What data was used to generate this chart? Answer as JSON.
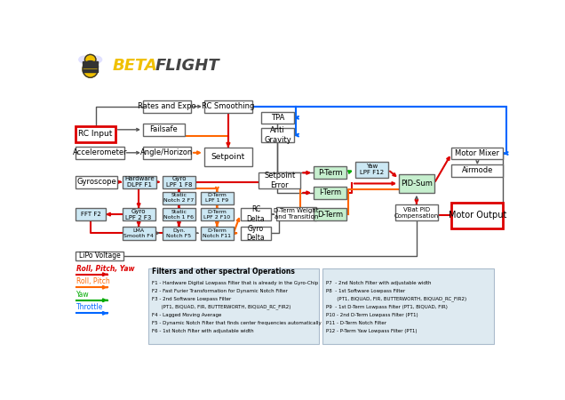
{
  "bg_color": "#ffffff",
  "boxes": {
    "rc_input": [
      0.012,
      0.695,
      0.09,
      0.052,
      "RC Input",
      "#ffffff",
      "#dd0000",
      2.0,
      6.5
    ],
    "rates_expo": [
      0.165,
      0.79,
      0.11,
      0.04,
      "Rates and Expo",
      "#ffffff",
      "#666666",
      1.0,
      6.0
    ],
    "rc_smoothing": [
      0.305,
      0.79,
      0.11,
      0.04,
      "RC Smoothing",
      "#ffffff",
      "#666666",
      1.0,
      6.0
    ],
    "failsafe": [
      0.165,
      0.715,
      0.095,
      0.04,
      "Failsafe",
      "#ffffff",
      "#666666",
      1.0,
      6.0
    ],
    "accelerometer": [
      0.012,
      0.64,
      0.11,
      0.04,
      "Accelerometer",
      "#ffffff",
      "#666666",
      1.0,
      6.0
    ],
    "angle_horizon": [
      0.165,
      0.64,
      0.11,
      0.04,
      "Angle/Horizon",
      "#ffffff",
      "#666666",
      1.0,
      6.0
    ],
    "setpoint": [
      0.305,
      0.617,
      0.11,
      0.06,
      "Setpoint",
      "#ffffff",
      "#666666",
      1.0,
      6.5
    ],
    "tpa": [
      0.435,
      0.755,
      0.075,
      0.038,
      "TPA",
      "#ffffff",
      "#666666",
      1.0,
      6.0
    ],
    "anti_gravity": [
      0.435,
      0.693,
      0.075,
      0.048,
      "Anti\nGravity",
      "#ffffff",
      "#666666",
      1.0,
      6.0
    ],
    "gyroscope": [
      0.012,
      0.545,
      0.095,
      0.04,
      "Gyroscope",
      "#ffffff",
      "#666666",
      1.0,
      6.0
    ],
    "hw_dlpf": [
      0.118,
      0.545,
      0.078,
      0.04,
      "Hardware\nDLPF F1",
      "#cce8f4",
      "#666666",
      1.0,
      5.0
    ],
    "gyro_lpf1": [
      0.21,
      0.545,
      0.075,
      0.04,
      "Gyro\nLPF 1 F8",
      "#cce8f4",
      "#666666",
      1.0,
      5.0
    ],
    "static_notch2": [
      0.21,
      0.493,
      0.075,
      0.04,
      "Static\nNotch 2 F7",
      "#cce8f4",
      "#666666",
      1.0,
      4.5
    ],
    "dterm_lpf1": [
      0.297,
      0.493,
      0.075,
      0.04,
      "D-Term\nLPF 1 F9",
      "#cce8f4",
      "#666666",
      1.0,
      4.5
    ],
    "fft": [
      0.012,
      0.44,
      0.068,
      0.04,
      "FFT F2",
      "#cce8f4",
      "#666666",
      1.0,
      5.0
    ],
    "gyro_lpf2": [
      0.118,
      0.44,
      0.075,
      0.04,
      "Gyro\nLPF 2 F3",
      "#cce8f4",
      "#666666",
      1.0,
      5.0
    ],
    "static_notch1": [
      0.21,
      0.44,
      0.075,
      0.04,
      "Static\nNotch 1 F6",
      "#cce8f4",
      "#666666",
      1.0,
      4.5
    ],
    "dterm_lpf2": [
      0.297,
      0.44,
      0.075,
      0.04,
      "D-Term\nLPF 2 F10",
      "#cce8f4",
      "#666666",
      1.0,
      4.5
    ],
    "lma_smooth": [
      0.118,
      0.378,
      0.075,
      0.042,
      "LMA\nSmooth F4",
      "#cce8f4",
      "#666666",
      1.0,
      4.5
    ],
    "dyn_notch": [
      0.21,
      0.378,
      0.075,
      0.042,
      "Dyn.\nNotch F5",
      "#cce8f4",
      "#666666",
      1.0,
      4.5
    ],
    "dterm_notch": [
      0.297,
      0.378,
      0.075,
      0.042,
      "D-Term\nNotch F11",
      "#cce8f4",
      "#666666",
      1.0,
      4.5
    ],
    "rc_delta": [
      0.388,
      0.44,
      0.07,
      0.04,
      "RC\nDelta",
      "#ffffff",
      "#666666",
      1.0,
      5.5
    ],
    "gyro_delta": [
      0.388,
      0.378,
      0.07,
      0.042,
      "Gyro\nDelta",
      "#ffffff",
      "#666666",
      1.0,
      5.5
    ],
    "dterm_weight": [
      0.47,
      0.44,
      0.09,
      0.042,
      "D-Term Weight\nand Transition",
      "#ffffff",
      "#666666",
      1.0,
      5.0
    ],
    "setpoint_error": [
      0.43,
      0.545,
      0.095,
      0.05,
      "Setpoint\nError",
      "#ffffff",
      "#666666",
      1.0,
      6.0
    ],
    "p_term": [
      0.555,
      0.575,
      0.075,
      0.04,
      "P-Term",
      "#c6efce",
      "#666666",
      1.0,
      6.0
    ],
    "i_term": [
      0.555,
      0.51,
      0.075,
      0.04,
      "I-Term",
      "#c6efce",
      "#666666",
      1.0,
      6.0
    ],
    "d_term": [
      0.555,
      0.44,
      0.075,
      0.04,
      "D-Term",
      "#c6efce",
      "#666666",
      1.0,
      6.0
    ],
    "yaw_lpf": [
      0.65,
      0.58,
      0.075,
      0.05,
      "Yaw\nLPF F12",
      "#cce8f4",
      "#666666",
      1.0,
      5.0
    ],
    "pid_sum": [
      0.75,
      0.53,
      0.08,
      0.06,
      "PID-Sum",
      "#c6efce",
      "#666666",
      1.0,
      6.0
    ],
    "vbat_pid": [
      0.742,
      0.44,
      0.096,
      0.052,
      "VBat PID\nCompensation",
      "#ffffff",
      "#666666",
      1.0,
      5.0
    ],
    "motor_mixer": [
      0.87,
      0.638,
      0.118,
      0.04,
      "Motor Mixer",
      "#ffffff",
      "#666666",
      1.0,
      6.0
    ],
    "airmode": [
      0.87,
      0.582,
      0.118,
      0.04,
      "Airmode",
      "#ffffff",
      "#666666",
      1.0,
      6.0
    ],
    "motor_output": [
      0.87,
      0.415,
      0.118,
      0.082,
      "Motor Output",
      "#ffffff",
      "#dd0000",
      2.0,
      7.0
    ],
    "lipo": [
      0.012,
      0.31,
      0.108,
      0.03,
      "LiPo Voltage",
      "#ffffff",
      "#666666",
      1.0,
      5.5
    ]
  }
}
